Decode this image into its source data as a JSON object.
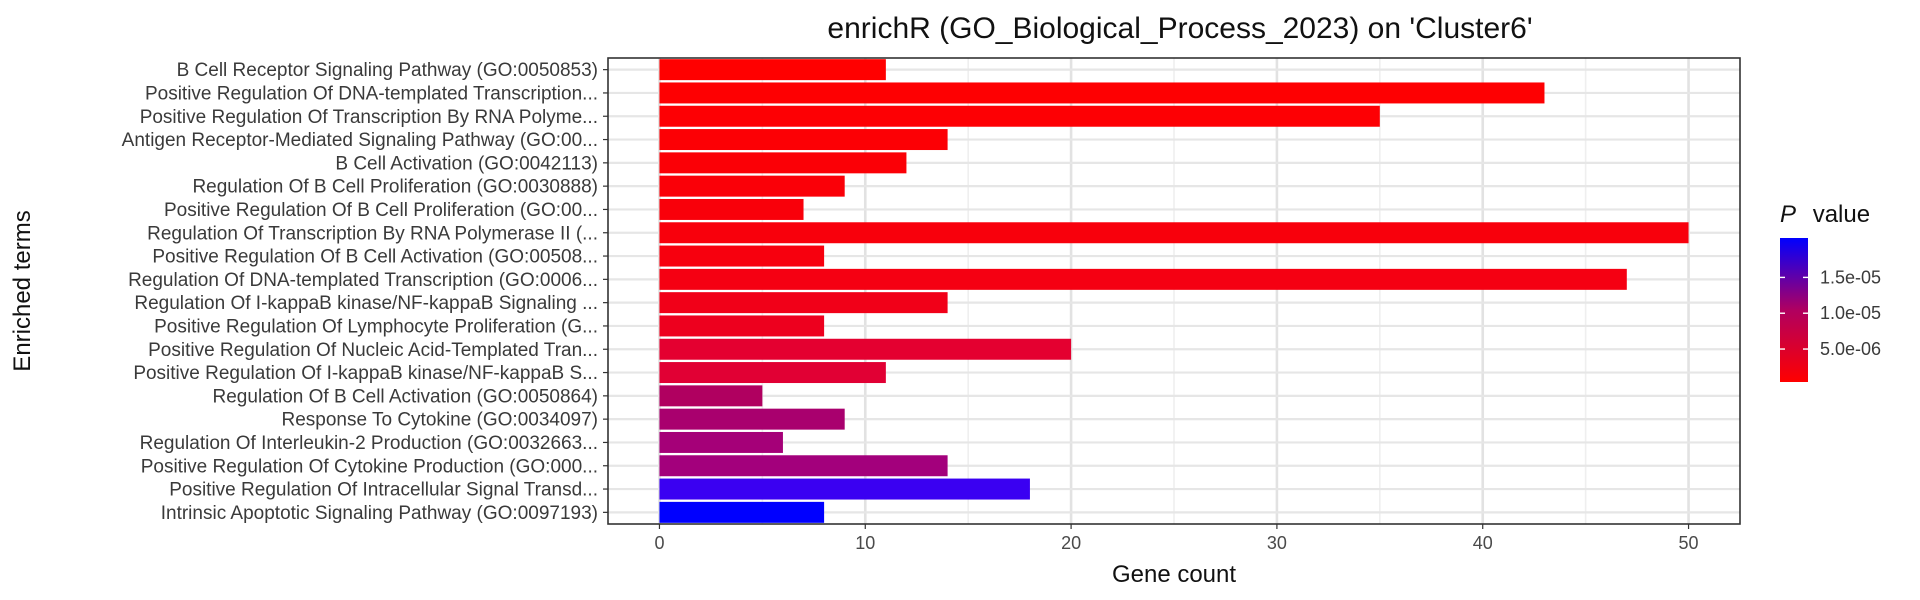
{
  "chart_data": {
    "type": "bar",
    "orientation": "horizontal",
    "title": "enrichR (GO_Biological_Process_2023) on 'Cluster6'",
    "xlabel": "Gene count",
    "ylabel": "Enriched terms",
    "xlim": [
      -2.5,
      52.5
    ],
    "xticks": [
      0,
      10,
      20,
      30,
      40,
      50
    ],
    "grid": true,
    "categories": [
      "B Cell Receptor Signaling Pathway (GO:0050853)",
      "Positive Regulation Of DNA-templated Transcription...",
      "Positive Regulation Of Transcription By RNA Polyme...",
      "Antigen Receptor-Mediated Signaling Pathway (GO:00...",
      "B Cell Activation (GO:0042113)",
      "Regulation Of B Cell Proliferation (GO:0030888)",
      "Positive Regulation Of B Cell Proliferation (GO:00...",
      "Regulation Of Transcription By RNA Polymerase II (...",
      "Positive Regulation Of B Cell Activation (GO:00508...",
      "Regulation Of DNA-templated Transcription (GO:0006...",
      "Regulation Of I-kappaB kinase/NF-kappaB Signaling ...",
      "Positive Regulation Of Lymphocyte Proliferation (G...",
      "Positive Regulation Of Nucleic Acid-Templated Tran...",
      "Positive Regulation Of I-kappaB kinase/NF-kappaB S...",
      "Regulation Of B Cell Activation (GO:0050864)",
      "Response To Cytokine (GO:0034097)",
      "Regulation Of Interleukin-2 Production (GO:0032663...",
      "Positive Regulation Of Cytokine Production (GO:000...",
      "Positive Regulation Of Intracellular Signal Transd...",
      "Intrinsic Apoptotic Signaling Pathway (GO:0097193)"
    ],
    "values": [
      11,
      43,
      35,
      14,
      12,
      9,
      7,
      50,
      8,
      47,
      14,
      8,
      20,
      11,
      5,
      9,
      6,
      14,
      18,
      8
    ],
    "p_values": [
      4e-07,
      4.5e-07,
      5e-07,
      8e-07,
      9e-07,
      1e-06,
      1.1e-06,
      1.2e-06,
      1.3e-06,
      1.5e-06,
      2e-06,
      2.5e-06,
      3.8e-06,
      4.2e-06,
      1.05e-05,
      1.15e-05,
      1.25e-05,
      1.3e-05,
      1.9e-05,
      2.05e-05
    ],
    "bar_colors": [
      "#ff0000",
      "#fe0002",
      "#fd0004",
      "#fc0005",
      "#fb0006",
      "#fa0008",
      "#f9000a",
      "#f8000c",
      "#f7000e",
      "#f50012",
      "#f10018",
      "#ed001e",
      "#e40030",
      "#e10034",
      "#b00060",
      "#a9006e",
      "#a50078",
      "#a3007c",
      "#3a00f2",
      "#0000ff"
    ],
    "legend": {
      "title_symbol": "P",
      "title_text": "value",
      "placement": "right",
      "ticks": [
        "1.5e-05",
        "1.0e-05",
        "5.0e-06"
      ],
      "tick_values": [
        1.5e-05,
        1e-05,
        5e-06
      ],
      "range": [
        4e-07,
        2.05e-05
      ],
      "colors": {
        "low": "#ff0000",
        "high": "#0000ff"
      }
    }
  }
}
